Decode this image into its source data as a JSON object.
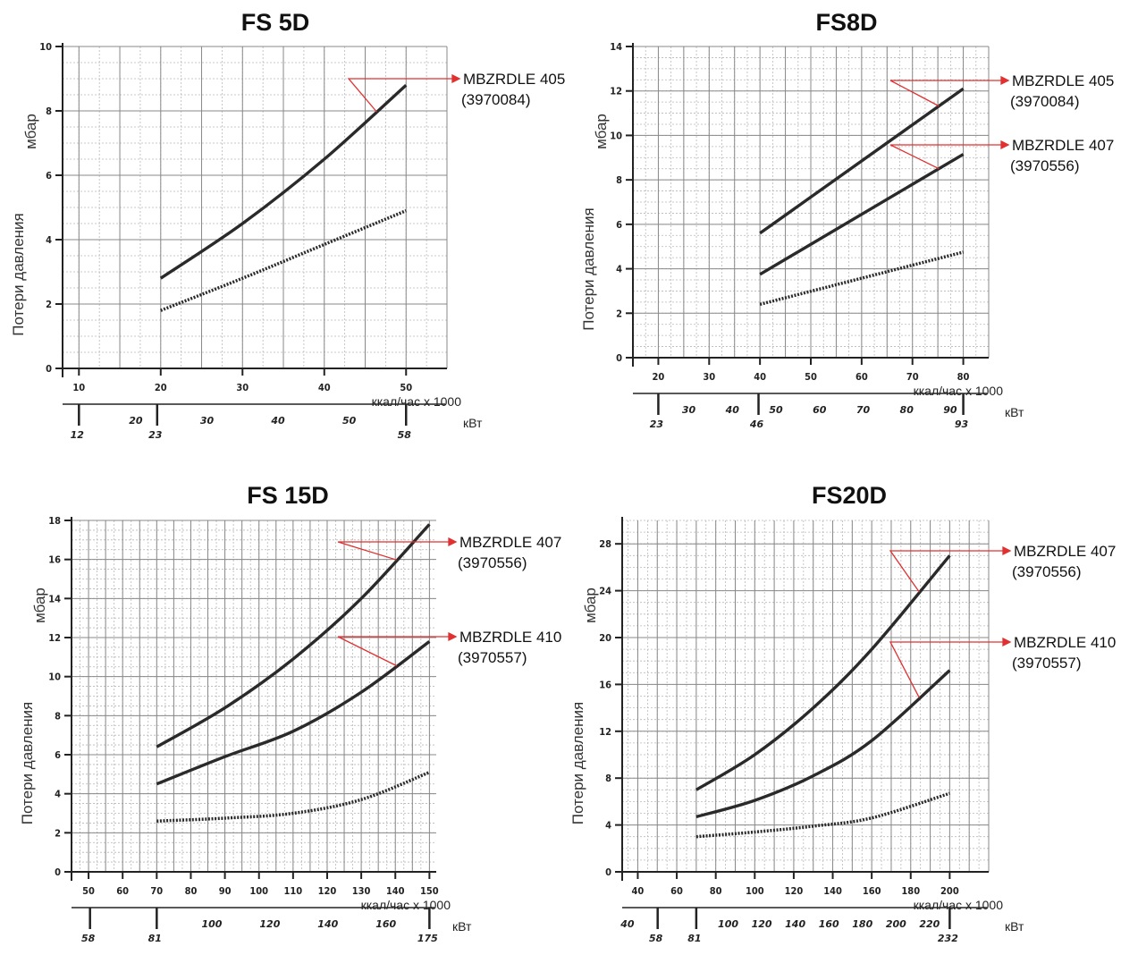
{
  "colors": {
    "curve": "#2a2a2a",
    "grid_major": "#888888",
    "grid_minor": "#b8b8b8",
    "leader": "#e03030",
    "axis": "#222222"
  },
  "chart_data": [
    {
      "type": "line",
      "title": "FS 5D",
      "xlabel": "ккал/час x 1000",
      "ylabel": "Потери давления",
      "yunit": "мбар",
      "kw_label": "кВт",
      "xlim": [
        8,
        55
      ],
      "ylim": [
        0,
        10
      ],
      "xticks": [
        10,
        20,
        30,
        40,
        50
      ],
      "yticks": [
        0,
        2,
        4,
        6,
        8,
        10
      ],
      "kw_ticks": [
        {
          "x": 12,
          "label": "12",
          "major": true
        },
        {
          "x": 20,
          "label": "20",
          "major": false
        },
        {
          "x": 23,
          "label": "23",
          "major": true
        },
        {
          "x": 30,
          "label": "30",
          "major": false
        },
        {
          "x": 40,
          "label": "40",
          "major": false
        },
        {
          "x": 50,
          "label": "50",
          "major": false
        },
        {
          "x": 58,
          "label": "58",
          "major": true
        }
      ],
      "series": [
        {
          "name": "MBZRDLE 405",
          "code": "(3970084)",
          "style": "solid",
          "x": [
            20,
            30,
            40,
            50
          ],
          "y": [
            2.8,
            4.5,
            6.5,
            8.8
          ]
        },
        {
          "style": "dotted",
          "x": [
            20,
            30,
            40,
            50
          ],
          "y": [
            1.8,
            2.8,
            3.85,
            4.9
          ]
        }
      ]
    },
    {
      "type": "line",
      "title": "FS8D",
      "xlabel": "ккал/час x 1000",
      "ylabel": "Потери давления",
      "yunit": "мбар",
      "kw_label": "кВт",
      "xlim": [
        15,
        85
      ],
      "ylim": [
        0,
        14
      ],
      "xticks": [
        20,
        30,
        40,
        50,
        60,
        70,
        80
      ],
      "yticks": [
        0,
        2,
        4,
        6,
        8,
        10,
        12,
        14
      ],
      "kw_ticks": [
        {
          "x": 23,
          "label": "23",
          "major": true
        },
        {
          "x": 30,
          "label": "30",
          "major": false
        },
        {
          "x": 40,
          "label": "40",
          "major": false
        },
        {
          "x": 46,
          "label": "46",
          "major": true
        },
        {
          "x": 50,
          "label": "50",
          "major": false
        },
        {
          "x": 60,
          "label": "60",
          "major": false
        },
        {
          "x": 70,
          "label": "70",
          "major": false
        },
        {
          "x": 80,
          "label": "80",
          "major": false
        },
        {
          "x": 90,
          "label": "90",
          "major": false
        },
        {
          "x": 93,
          "label": "93",
          "major": true
        }
      ],
      "series": [
        {
          "name": "MBZRDLE 405",
          "code": "(3970084)",
          "style": "solid",
          "x": [
            40,
            80
          ],
          "y": [
            5.6,
            12.1
          ]
        },
        {
          "name": "MBZRDLE 407",
          "code": "(3970556)",
          "style": "solid",
          "x": [
            40,
            80
          ],
          "y": [
            3.75,
            9.15
          ]
        },
        {
          "style": "dotted",
          "x": [
            40,
            80
          ],
          "y": [
            2.4,
            4.75
          ]
        }
      ]
    },
    {
      "type": "line",
      "title": "FS 15D",
      "xlabel": "ккал/час x 1000",
      "ylabel": "Потери давления",
      "yunit": "мбар",
      "kw_label": "кВт",
      "xlim": [
        45,
        152
      ],
      "ylim": [
        0,
        18
      ],
      "xticks": [
        50,
        60,
        70,
        80,
        90,
        100,
        110,
        120,
        130,
        140,
        150
      ],
      "yticks": [
        0,
        2,
        4,
        6,
        8,
        10,
        12,
        14,
        16,
        18
      ],
      "kw_ticks": [
        {
          "x": 58,
          "label": "58",
          "major": true
        },
        {
          "x": 81,
          "label": "81",
          "major": true
        },
        {
          "x": 100,
          "label": "100",
          "major": false
        },
        {
          "x": 120,
          "label": "120",
          "major": false
        },
        {
          "x": 140,
          "label": "140",
          "major": false
        },
        {
          "x": 160,
          "label": "160",
          "major": false
        },
        {
          "x": 175,
          "label": "175",
          "major": true
        }
      ],
      "series": [
        {
          "name": "MBZRDLE 407",
          "code": "(3970556)",
          "style": "solid",
          "x": [
            70,
            90,
            110,
            130,
            150
          ],
          "y": [
            6.4,
            8.4,
            10.9,
            14.0,
            17.8
          ]
        },
        {
          "name": "MBZRDLE 410",
          "code": "(3970557)",
          "style": "solid",
          "x": [
            70,
            90,
            110,
            130,
            150
          ],
          "y": [
            4.5,
            5.9,
            7.2,
            9.2,
            11.8
          ]
        },
        {
          "style": "dotted",
          "x": [
            70,
            90,
            110,
            130,
            150
          ],
          "y": [
            2.6,
            2.75,
            3.0,
            3.7,
            5.1
          ]
        }
      ]
    },
    {
      "type": "line",
      "title": "FS20D",
      "xlabel": "ккал/час x 1000",
      "ylabel": "Потери давления",
      "yunit": "мбар",
      "kw_label": "кВт",
      "xlim": [
        32,
        220
      ],
      "ylim": [
        0,
        30
      ],
      "xticks": [
        40,
        60,
        80,
        100,
        120,
        140,
        160,
        180,
        200
      ],
      "yticks": [
        0,
        4,
        8,
        12,
        16,
        20,
        24,
        28
      ],
      "kw_ticks": [
        {
          "x": 40,
          "label": "40",
          "major": false
        },
        {
          "x": 58,
          "label": "58",
          "major": true
        },
        {
          "x": 81,
          "label": "81",
          "major": true
        },
        {
          "x": 100,
          "label": "100",
          "major": false
        },
        {
          "x": 120,
          "label": "120",
          "major": false
        },
        {
          "x": 140,
          "label": "140",
          "major": false
        },
        {
          "x": 160,
          "label": "160",
          "major": false
        },
        {
          "x": 180,
          "label": "180",
          "major": false
        },
        {
          "x": 200,
          "label": "200",
          "major": false
        },
        {
          "x": 220,
          "label": "220",
          "major": false
        },
        {
          "x": 232,
          "label": "232",
          "major": true
        }
      ],
      "series": [
        {
          "name": "MBZRDLE 407",
          "code": "(3970556)",
          "style": "solid",
          "x": [
            70,
            100,
            130,
            160,
            200
          ],
          "y": [
            7.0,
            10.0,
            14.0,
            19.0,
            27.0
          ]
        },
        {
          "name": "MBZRDLE 410",
          "code": "(3970557)",
          "style": "solid",
          "x": [
            70,
            100,
            130,
            160,
            200
          ],
          "y": [
            4.7,
            6.1,
            8.2,
            11.2,
            17.2
          ]
        },
        {
          "style": "dotted",
          "x": [
            70,
            100,
            130,
            160,
            200
          ],
          "y": [
            3.0,
            3.4,
            3.9,
            4.6,
            6.7
          ]
        }
      ]
    }
  ]
}
